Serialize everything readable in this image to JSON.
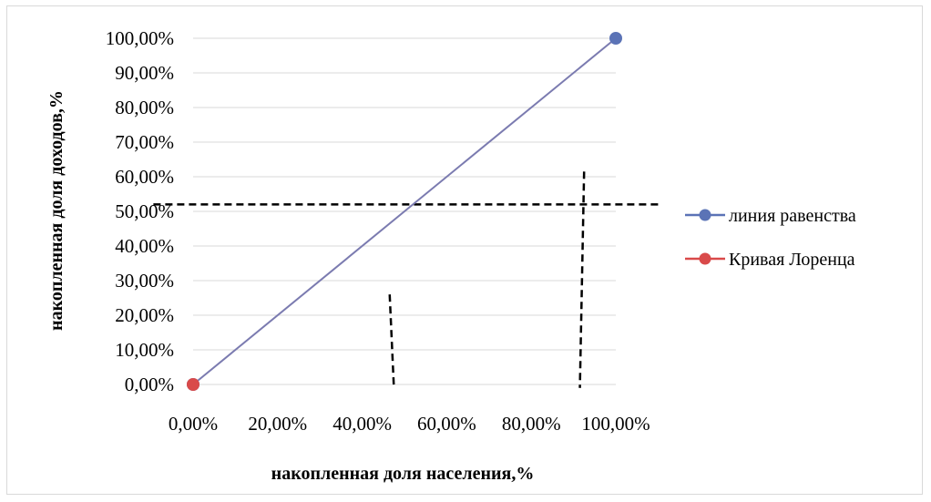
{
  "chart_data": {
    "type": "line",
    "xlabel": "накопленная доля населения,%",
    "ylabel": "накопленная доля доходов,%",
    "xlim": [
      0,
      1
    ],
    "ylim": [
      0,
      1
    ],
    "x_ticks": [
      "0,00%",
      "20,00%",
      "40,00%",
      "60,00%",
      "80,00%",
      "100,00%"
    ],
    "y_ticks": [
      "0,00%",
      "10,00%",
      "20,00%",
      "30,00%",
      "40,00%",
      "50,00%",
      "60,00%",
      "70,00%",
      "80,00%",
      "90,00%",
      "100,00%"
    ],
    "grid": "horizontal",
    "legend_position": "right",
    "series": [
      {
        "name": "линия равенства",
        "color": "#5b73b6",
        "line_color": "#7b7bb0",
        "x": [
          0,
          1
        ],
        "y": [
          0,
          1
        ]
      },
      {
        "name": "Кривая Лоренца",
        "color": "#d94a4a",
        "x": [
          0
        ],
        "y": [
          0
        ]
      }
    ],
    "annotations": [
      {
        "kind": "dashed-line",
        "x": [
          -0.094,
          1.1
        ],
        "y": [
          0.52,
          0.52
        ]
      },
      {
        "kind": "dashed-line",
        "x": [
          0.465,
          0.475
        ],
        "y": [
          0.26,
          -0.01
        ]
      },
      {
        "kind": "dashed-line",
        "x": [
          0.925,
          0.915
        ],
        "y": [
          0.615,
          -0.01
        ]
      }
    ]
  }
}
